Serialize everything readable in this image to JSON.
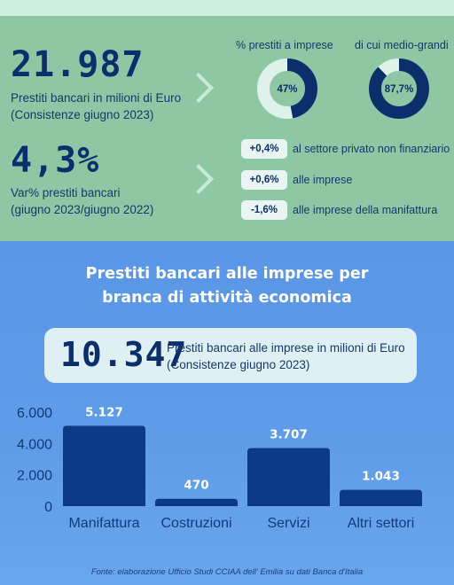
{
  "headline_1": {
    "value": "21.987",
    "caption_line1": "Prestiti bancari in milioni di Euro",
    "caption_line2": "(Consistenze giugno 2023)"
  },
  "donuts": {
    "title_1": "%  prestiti a imprese",
    "title_2": "di cui medio-grandi",
    "items": [
      {
        "label": "47%",
        "fraction": 0.47,
        "color": "#0b2f6b",
        "track": "#dff2ea"
      },
      {
        "label": "87,7%",
        "fraction": 0.877,
        "color": "#0b2f6b",
        "track": "#dff2ea"
      }
    ]
  },
  "headline_2": {
    "value": "4,3%",
    "caption_line1": "Var% prestiti bancari",
    "caption_line2": "(giugno 2023/giugno 2022)"
  },
  "variations": [
    {
      "value": "+0,4%",
      "label": "al settore privato non finanziario"
    },
    {
      "value": "+0,6%",
      "label": "alle imprese"
    },
    {
      "value": "-1,6%",
      "label": "alle imprese della manifattura"
    }
  ],
  "section": {
    "title_line1": "Prestiti bancari alle imprese per",
    "title_line2": "branca di attività economica"
  },
  "total": {
    "value": "10.347",
    "caption_line1": "Prestiti bancari alle imprese in milioni di Euro",
    "caption_line2": "(Consistenze giugno 2023)"
  },
  "chart_data": {
    "type": "bar",
    "categories": [
      "Manifattura",
      "Costruzioni",
      "Servizi",
      "Altri settori"
    ],
    "values": [
      5127,
      470,
      3707,
      1043
    ],
    "value_labels": [
      "5.127",
      "470",
      "3.707",
      "1.043"
    ],
    "y_ticks": [
      0,
      2000,
      4000,
      6000
    ],
    "y_tick_labels": [
      "0",
      "2.000",
      "4.000",
      "6.000"
    ],
    "ylim": [
      0,
      6000
    ],
    "grid": false,
    "bar_color": "#0d3a86",
    "title": "",
    "xlabel": "",
    "ylabel": ""
  },
  "source": "Fonte: elaborazione Ufficio Studi CCIAA dell' Emilia su dati Banca d'Italia"
}
